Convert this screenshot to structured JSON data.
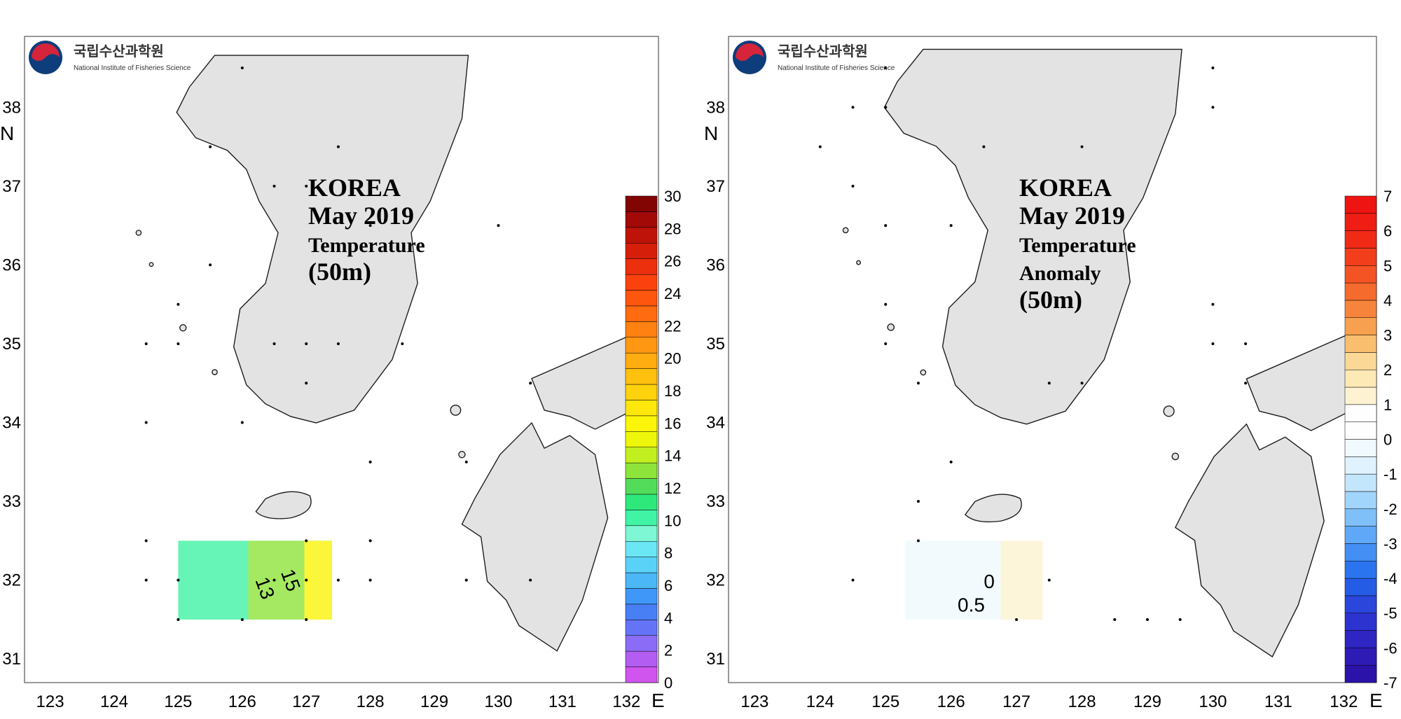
{
  "logo": {
    "korean": "국립수산과학원",
    "english": "National Institute of Fisheries Science"
  },
  "colors": {
    "land": "#e3e3e3",
    "coast": "#1a1a1a",
    "logo_red": "#d6243a",
    "logo_blue": "#0d3d7a"
  },
  "panels": [
    {
      "id": "temperature",
      "title_lines": [
        "KOREA",
        "May 2019",
        "Temperature",
        "(50m)"
      ],
      "colorbar": {
        "ticks": [
          "0",
          "2",
          "4",
          "6",
          "8",
          "10",
          "12",
          "14",
          "16",
          "18",
          "20",
          "22",
          "24",
          "26",
          "28",
          "30"
        ],
        "colors": [
          "#cf55ee",
          "#b35df2",
          "#8a6cf6",
          "#6574f7",
          "#497ff5",
          "#3f97f7",
          "#4bb7f7",
          "#5ad1f7",
          "#6be6f4",
          "#7ef7d4",
          "#40f3a5",
          "#2fe87c",
          "#53dc59",
          "#8ee43a",
          "#c2ef1f",
          "#eef70b",
          "#fbf50a",
          "#fde70c",
          "#fed20d",
          "#ffc00e",
          "#ffac10",
          "#ff9712",
          "#ff8111",
          "#ff6b10",
          "#ff560f",
          "#fb420e",
          "#ec2f0c",
          "#d61f0a",
          "#bd1308",
          "#a10a07",
          "#820504"
        ],
        "range": [
          0,
          31
        ]
      },
      "contour_labels": [
        "13",
        "15"
      ]
    },
    {
      "id": "anomaly",
      "title_lines": [
        "KOREA",
        "May 2019",
        "Temperature",
        "Anomaly",
        "(50m)"
      ],
      "colorbar": {
        "ticks": [
          "-7",
          "-6",
          "-5",
          "-4",
          "-3",
          "-2",
          "-1",
          "0",
          "1",
          "2",
          "3",
          "4",
          "5",
          "6",
          "7"
        ],
        "colors": [
          "#2b12a8",
          "#2e1bb5",
          "#2f25c2",
          "#2d33cf",
          "#2a46db",
          "#255ce6",
          "#2b74ef",
          "#438ff4",
          "#5fa8f7",
          "#7fc0f9",
          "#a2d5fb",
          "#c4e6fc",
          "#dff2fd",
          "#f0f9fd",
          "#fefefe",
          "#fefefe",
          "#fdf3d2",
          "#fde9b6",
          "#fcd896",
          "#f9bf6e",
          "#f7a04f",
          "#f6853b",
          "#f56a2d",
          "#f45323",
          "#f23e1b",
          "#f12a16",
          "#ef1d13",
          "#ee1411"
        ],
        "range": [
          -7,
          7.5
        ]
      },
      "contour_labels": [
        "0",
        "0.5"
      ]
    }
  ],
  "axes": {
    "lon_ticks": [
      "123",
      "124",
      "125",
      "126",
      "127",
      "128",
      "129",
      "130",
      "131",
      "132"
    ],
    "lat_ticks": [
      "31",
      "32",
      "33",
      "34",
      "35",
      "36",
      "37",
      "38"
    ],
    "lon_unit": "E",
    "lat_unit": "N",
    "degree_symbol": "o"
  }
}
